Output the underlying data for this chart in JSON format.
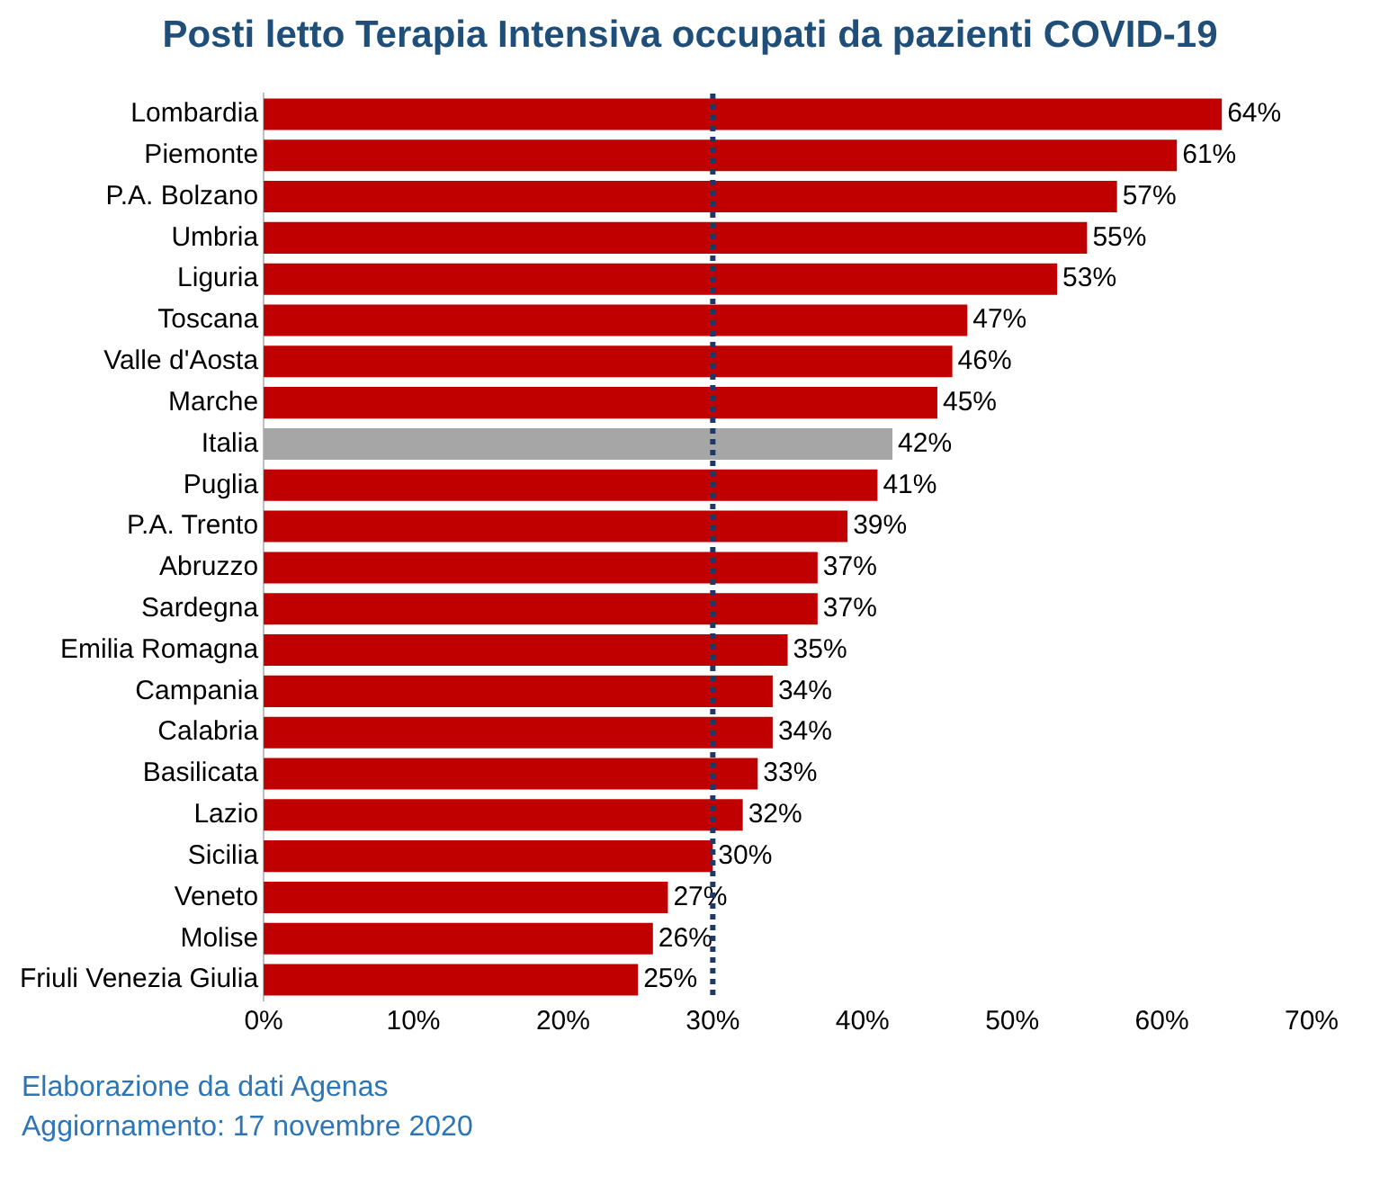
{
  "chart_data": {
    "type": "bar",
    "orientation": "horizontal",
    "title": "Posti letto Terapia  Intensiva occupati da pazienti COVID-19",
    "categories": [
      "Lombardia",
      "Piemonte",
      "P.A. Bolzano",
      "Umbria",
      "Liguria",
      "Toscana",
      "Valle d'Aosta",
      "Marche",
      "Italia",
      "Puglia",
      "P.A. Trento",
      "Abruzzo",
      "Sardegna",
      "Emilia Romagna",
      "Campania",
      "Calabria",
      "Basilicata",
      "Lazio",
      "Sicilia",
      "Veneto",
      "Molise",
      "Friuli Venezia Giulia"
    ],
    "values": [
      64,
      61,
      57,
      55,
      53,
      47,
      46,
      45,
      42,
      41,
      39,
      37,
      37,
      35,
      34,
      34,
      33,
      32,
      30,
      27,
      26,
      25
    ],
    "colors": [
      "#c00000",
      "#c00000",
      "#c00000",
      "#c00000",
      "#c00000",
      "#c00000",
      "#c00000",
      "#c00000",
      "#a6a6a6",
      "#c00000",
      "#c00000",
      "#c00000",
      "#c00000",
      "#c00000",
      "#c00000",
      "#c00000",
      "#c00000",
      "#c00000",
      "#c00000",
      "#c00000",
      "#c00000",
      "#c00000"
    ],
    "value_labels": [
      "64%",
      "61%",
      "57%",
      "55%",
      "53%",
      "47%",
      "46%",
      "45%",
      "42%",
      "41%",
      "39%",
      "37%",
      "37%",
      "35%",
      "34%",
      "34%",
      "33%",
      "32%",
      "30%",
      "27%",
      "26%",
      "25%"
    ],
    "xlim": [
      0,
      70
    ],
    "xticks": [
      {
        "value": 0,
        "label": "0%"
      },
      {
        "value": 10,
        "label": "10%"
      },
      {
        "value": 20,
        "label": "20%"
      },
      {
        "value": 30,
        "label": "30%"
      },
      {
        "value": 40,
        "label": "40%"
      },
      {
        "value": 50,
        "label": "50%"
      },
      {
        "value": 60,
        "label": "60%"
      },
      {
        "value": 70,
        "label": "70%"
      }
    ],
    "ref_lines": [
      {
        "axis": "x",
        "value": 30,
        "color": "#1f3864",
        "line_style": "dotted"
      }
    ],
    "grid": false,
    "legend": false,
    "annotations": [
      "Elaborazione da dati Agenas",
      "Aggiornamento: 17 novembre 2020"
    ]
  }
}
